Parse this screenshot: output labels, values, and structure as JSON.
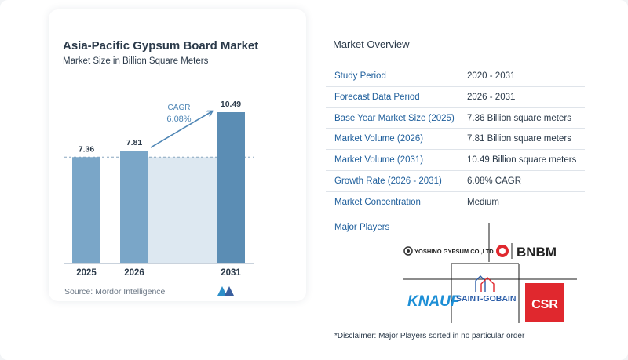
{
  "chart": {
    "title": "Asia-Pacific Gypsum Board Market",
    "subtitle": "Market Size in Billion Square Meters",
    "source": "Source:  Mordor Intelligence",
    "cagr_label": "CAGR",
    "cagr_value": "6.08%"
  },
  "chart_data": {
    "type": "bar",
    "title": "Asia-Pacific Gypsum Board Market",
    "subtitle": "Market Size in Billion Square Meters",
    "categories": [
      "2025",
      "2026",
      "2031"
    ],
    "values": [
      7.36,
      7.81,
      10.49
    ],
    "value_labels": [
      "7.36",
      "7.81",
      "10.49"
    ],
    "ylim": [
      0,
      10.49
    ],
    "reference_line": 7.36,
    "annotation": "CAGR 6.08%",
    "grid": false,
    "colors": {
      "bar": "#5b8db4",
      "bar_light": "#7aa6c8",
      "fill_band": "#dde8f1",
      "arrow": "#4f86b5"
    }
  },
  "overview": {
    "title": "Market Overview",
    "rows": [
      {
        "label": "Study Period",
        "value": "2020 - 2031"
      },
      {
        "label": "Forecast Data Period",
        "value": "2026 - 2031"
      },
      {
        "label": "Base Year Market Size (2025)",
        "value": "7.36 Billion square meters"
      },
      {
        "label": "Market Volume (2026)",
        "value": "7.81 Billion square meters"
      },
      {
        "label": "Market Volume (2031)",
        "value": "10.49 Billion square meters"
      },
      {
        "label": "Growth Rate (2026 - 2031)",
        "value": "6.08% CAGR"
      },
      {
        "label": "Market Concentration",
        "value": "Medium"
      }
    ],
    "major_players_label": "Major Players",
    "players": {
      "p1": "YOSHINO GYPSUM CO.,LTD",
      "p2": "BNBM",
      "p3": "KNAUF",
      "p4": "SAINT-GOBAIN",
      "p5": "CSR"
    },
    "disclaimer": "*Disclaimer: Major Players sorted in no particular order"
  },
  "colors": {
    "accent": "#1f5f9c",
    "csr_red": "#e0282e",
    "knauf_blue": "#1d8fd6",
    "sg_blue": "#2b5da8"
  }
}
